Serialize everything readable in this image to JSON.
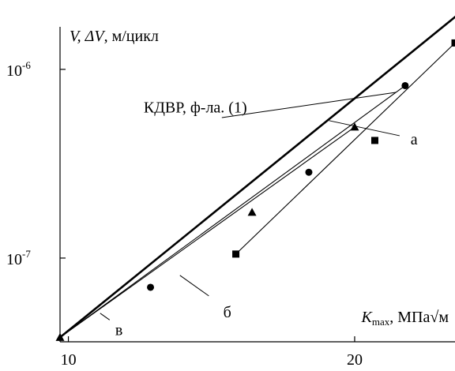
{
  "chart_data": {
    "type": "line",
    "xscale": "log",
    "yscale": "log",
    "xlim": [
      9.8,
      25.5
    ],
    "ylim": [
      3.6e-08,
      2.2e-06
    ],
    "grid": false,
    "legend": "none",
    "ylabel": {
      "main": "V, ΔV",
      "sep": ", ",
      "unit": "м/цикл"
    },
    "xlabel": {
      "sym": "K",
      "sub": "max",
      "unit": ", МПа√м"
    },
    "x_ticks": [
      {
        "value": 10,
        "label": "10"
      },
      {
        "value": 20,
        "label": "20"
      }
    ],
    "y_ticks": [
      {
        "value": 1e-07,
        "base": "10",
        "exp": "-7"
      },
      {
        "value": 1e-06,
        "base": "10",
        "exp": "-6"
      }
    ],
    "series": [
      {
        "curve": "kdvr",
        "x": [
          9.8,
          26.0
        ],
        "y": [
          3.8e-08,
          2.05e-06
        ],
        "stroke_width": 2.6,
        "marker": "none",
        "markers": []
      },
      {
        "curve": "a",
        "x": [
          15.0,
          25.5
        ],
        "y": [
          1.05e-07,
          1.38e-06
        ],
        "stroke_width": 1.1,
        "marker": "square",
        "markers": [
          [
            15.0,
            1.05e-07
          ],
          [
            21.0,
            4.2e-07
          ],
          [
            25.5,
            1.38e-06
          ]
        ]
      },
      {
        "curve": "b",
        "x": [
          9.8,
          22.6
        ],
        "y": [
          3.8e-08,
          8.2e-07
        ],
        "stroke_width": 1.1,
        "marker": "circle",
        "markers": [
          [
            12.2,
            7e-08
          ],
          [
            17.9,
            2.85e-07
          ],
          [
            22.6,
            8.2e-07
          ]
        ]
      },
      {
        "curve": "v",
        "x": [
          9.8,
          20.0
        ],
        "y": [
          3.8e-08,
          4.95e-07
        ],
        "stroke_width": 1.1,
        "marker": "triangle",
        "markers": [
          [
            9.8,
            3.8e-08
          ],
          [
            15.6,
            1.75e-07
          ],
          [
            20.0,
            4.95e-07
          ]
        ]
      }
    ],
    "annotations": [
      {
        "text": "КДВР, ф-ла. (1)",
        "at": [
          12.0,
          5.9e-07
        ],
        "anchor": "start",
        "pointer_from": [
          14.5,
          5.55e-07
        ],
        "pointer_to": [
          22.1,
          7.55e-07
        ]
      },
      {
        "text": "а",
        "at": [
          22.9,
          4e-07
        ],
        "anchor": "start",
        "pointer_from": [
          22.3,
          4.45e-07
        ],
        "pointer_to": [
          18.8,
          5.35e-07
        ]
      },
      {
        "text": "б",
        "at": [
          14.55,
          4.85e-08
        ],
        "anchor": "start",
        "pointer_from": [
          14.05,
          6.3e-08
        ],
        "pointer_to": [
          13.1,
          8.1e-08
        ]
      },
      {
        "text": "в",
        "at": [
          11.2,
          3.9e-08
        ],
        "anchor": "start",
        "pointer_from": [
          11.05,
          4.7e-08
        ],
        "pointer_to": [
          10.8,
          5.1e-08
        ]
      }
    ]
  }
}
